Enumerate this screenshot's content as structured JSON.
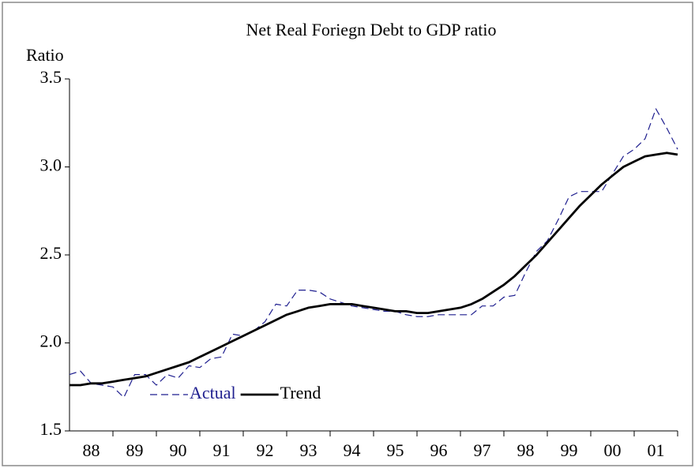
{
  "chart_data": {
    "type": "line",
    "title": "Net Real Foriegn Debt to GDP ratio",
    "y_label": "Ratio",
    "x": [
      1987.5,
      1987.75,
      1988,
      1988.25,
      1988.5,
      1988.75,
      1989,
      1989.25,
      1989.5,
      1989.75,
      1990,
      1990.25,
      1990.5,
      1990.75,
      1991,
      1991.25,
      1991.5,
      1991.75,
      1992,
      1992.25,
      1992.5,
      1992.75,
      1993,
      1993.25,
      1993.5,
      1993.75,
      1994,
      1994.25,
      1994.5,
      1994.75,
      1995,
      1995.25,
      1995.5,
      1995.75,
      1996,
      1996.25,
      1996.5,
      1996.75,
      1997,
      1997.25,
      1997.5,
      1997.75,
      1998,
      1998.25,
      1998.5,
      1998.75,
      1999,
      1999.25,
      1999.5,
      1999.75,
      2000,
      2000.25,
      2000.5,
      2000.75,
      2001,
      2001.25,
      2001.5
    ],
    "series": [
      {
        "name": "Actual",
        "color": "#1f1f8f",
        "dashed": true,
        "values": [
          1.82,
          1.84,
          1.77,
          1.76,
          1.75,
          1.69,
          1.82,
          1.82,
          1.76,
          1.82,
          1.8,
          1.87,
          1.86,
          1.91,
          1.92,
          2.05,
          2.04,
          2.07,
          2.12,
          2.22,
          2.21,
          2.3,
          2.3,
          2.29,
          2.25,
          2.23,
          2.21,
          2.2,
          2.19,
          2.18,
          2.18,
          2.16,
          2.15,
          2.15,
          2.16,
          2.16,
          2.16,
          2.16,
          2.21,
          2.21,
          2.26,
          2.27,
          2.4,
          2.52,
          2.58,
          2.7,
          2.83,
          2.86,
          2.86,
          2.86,
          2.96,
          3.06,
          3.1,
          3.16,
          3.33,
          3.22,
          3.1
        ]
      },
      {
        "name": "Trend",
        "color": "#000000",
        "dashed": false,
        "values": [
          1.76,
          1.76,
          1.77,
          1.77,
          1.78,
          1.79,
          1.8,
          1.81,
          1.83,
          1.85,
          1.87,
          1.89,
          1.92,
          1.95,
          1.98,
          2.01,
          2.04,
          2.07,
          2.1,
          2.13,
          2.16,
          2.18,
          2.2,
          2.21,
          2.22,
          2.22,
          2.22,
          2.21,
          2.2,
          2.19,
          2.18,
          2.18,
          2.17,
          2.17,
          2.18,
          2.19,
          2.2,
          2.22,
          2.25,
          2.29,
          2.33,
          2.38,
          2.44,
          2.5,
          2.57,
          2.64,
          2.71,
          2.78,
          2.84,
          2.9,
          2.95,
          3.0,
          3.03,
          3.06,
          3.07,
          3.08,
          3.07
        ]
      }
    ],
    "xlim": [
      1987.5,
      2001.5
    ],
    "xticks": [
      {
        "value": 1988.5,
        "label": "88"
      },
      {
        "value": 1989.5,
        "label": "89"
      },
      {
        "value": 1990.5,
        "label": "90"
      },
      {
        "value": 1991.5,
        "label": "91"
      },
      {
        "value": 1992.5,
        "label": "92"
      },
      {
        "value": 1993.5,
        "label": "93"
      },
      {
        "value": 1994.5,
        "label": "94"
      },
      {
        "value": 1995.5,
        "label": "95"
      },
      {
        "value": 1996.5,
        "label": "96"
      },
      {
        "value": 1997.5,
        "label": "97"
      },
      {
        "value": 1998.5,
        "label": "98"
      },
      {
        "value": 1999.5,
        "label": "99"
      },
      {
        "value": 2000.5,
        "label": "00"
      },
      {
        "value": 2001.5,
        "label": "01"
      }
    ],
    "ylim": [
      1.5,
      3.5
    ],
    "yticks": [
      1.5,
      {
        "value": 2,
        "label": "2.0"
      },
      2.5,
      {
        "value": 3,
        "label": "3.0"
      },
      3.5
    ],
    "legend": "lower-left"
  }
}
